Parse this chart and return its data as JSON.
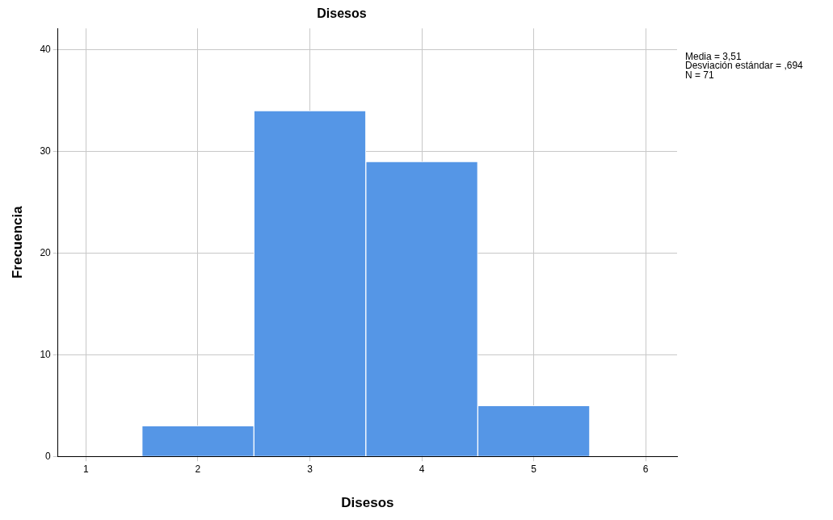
{
  "chart_data": {
    "type": "histogram",
    "title": "Disesos",
    "xlabel": "Disesos",
    "ylabel": "Frecuencia",
    "bins": [
      1.5,
      2.5,
      3.5,
      4.5,
      5.5
    ],
    "values": [
      3,
      34,
      29,
      5
    ],
    "color": "#5596e6",
    "xlim": [
      0.75,
      6.28
    ],
    "xticks": [
      1,
      2,
      3,
      4,
      5,
      6
    ],
    "ylim": [
      0,
      42.1
    ],
    "yticks": [
      0,
      10,
      20,
      30,
      40
    ],
    "grid": true,
    "annotations": [
      "Media = 3,51",
      "Desviación estándar = ,694",
      "N = 71"
    ]
  }
}
